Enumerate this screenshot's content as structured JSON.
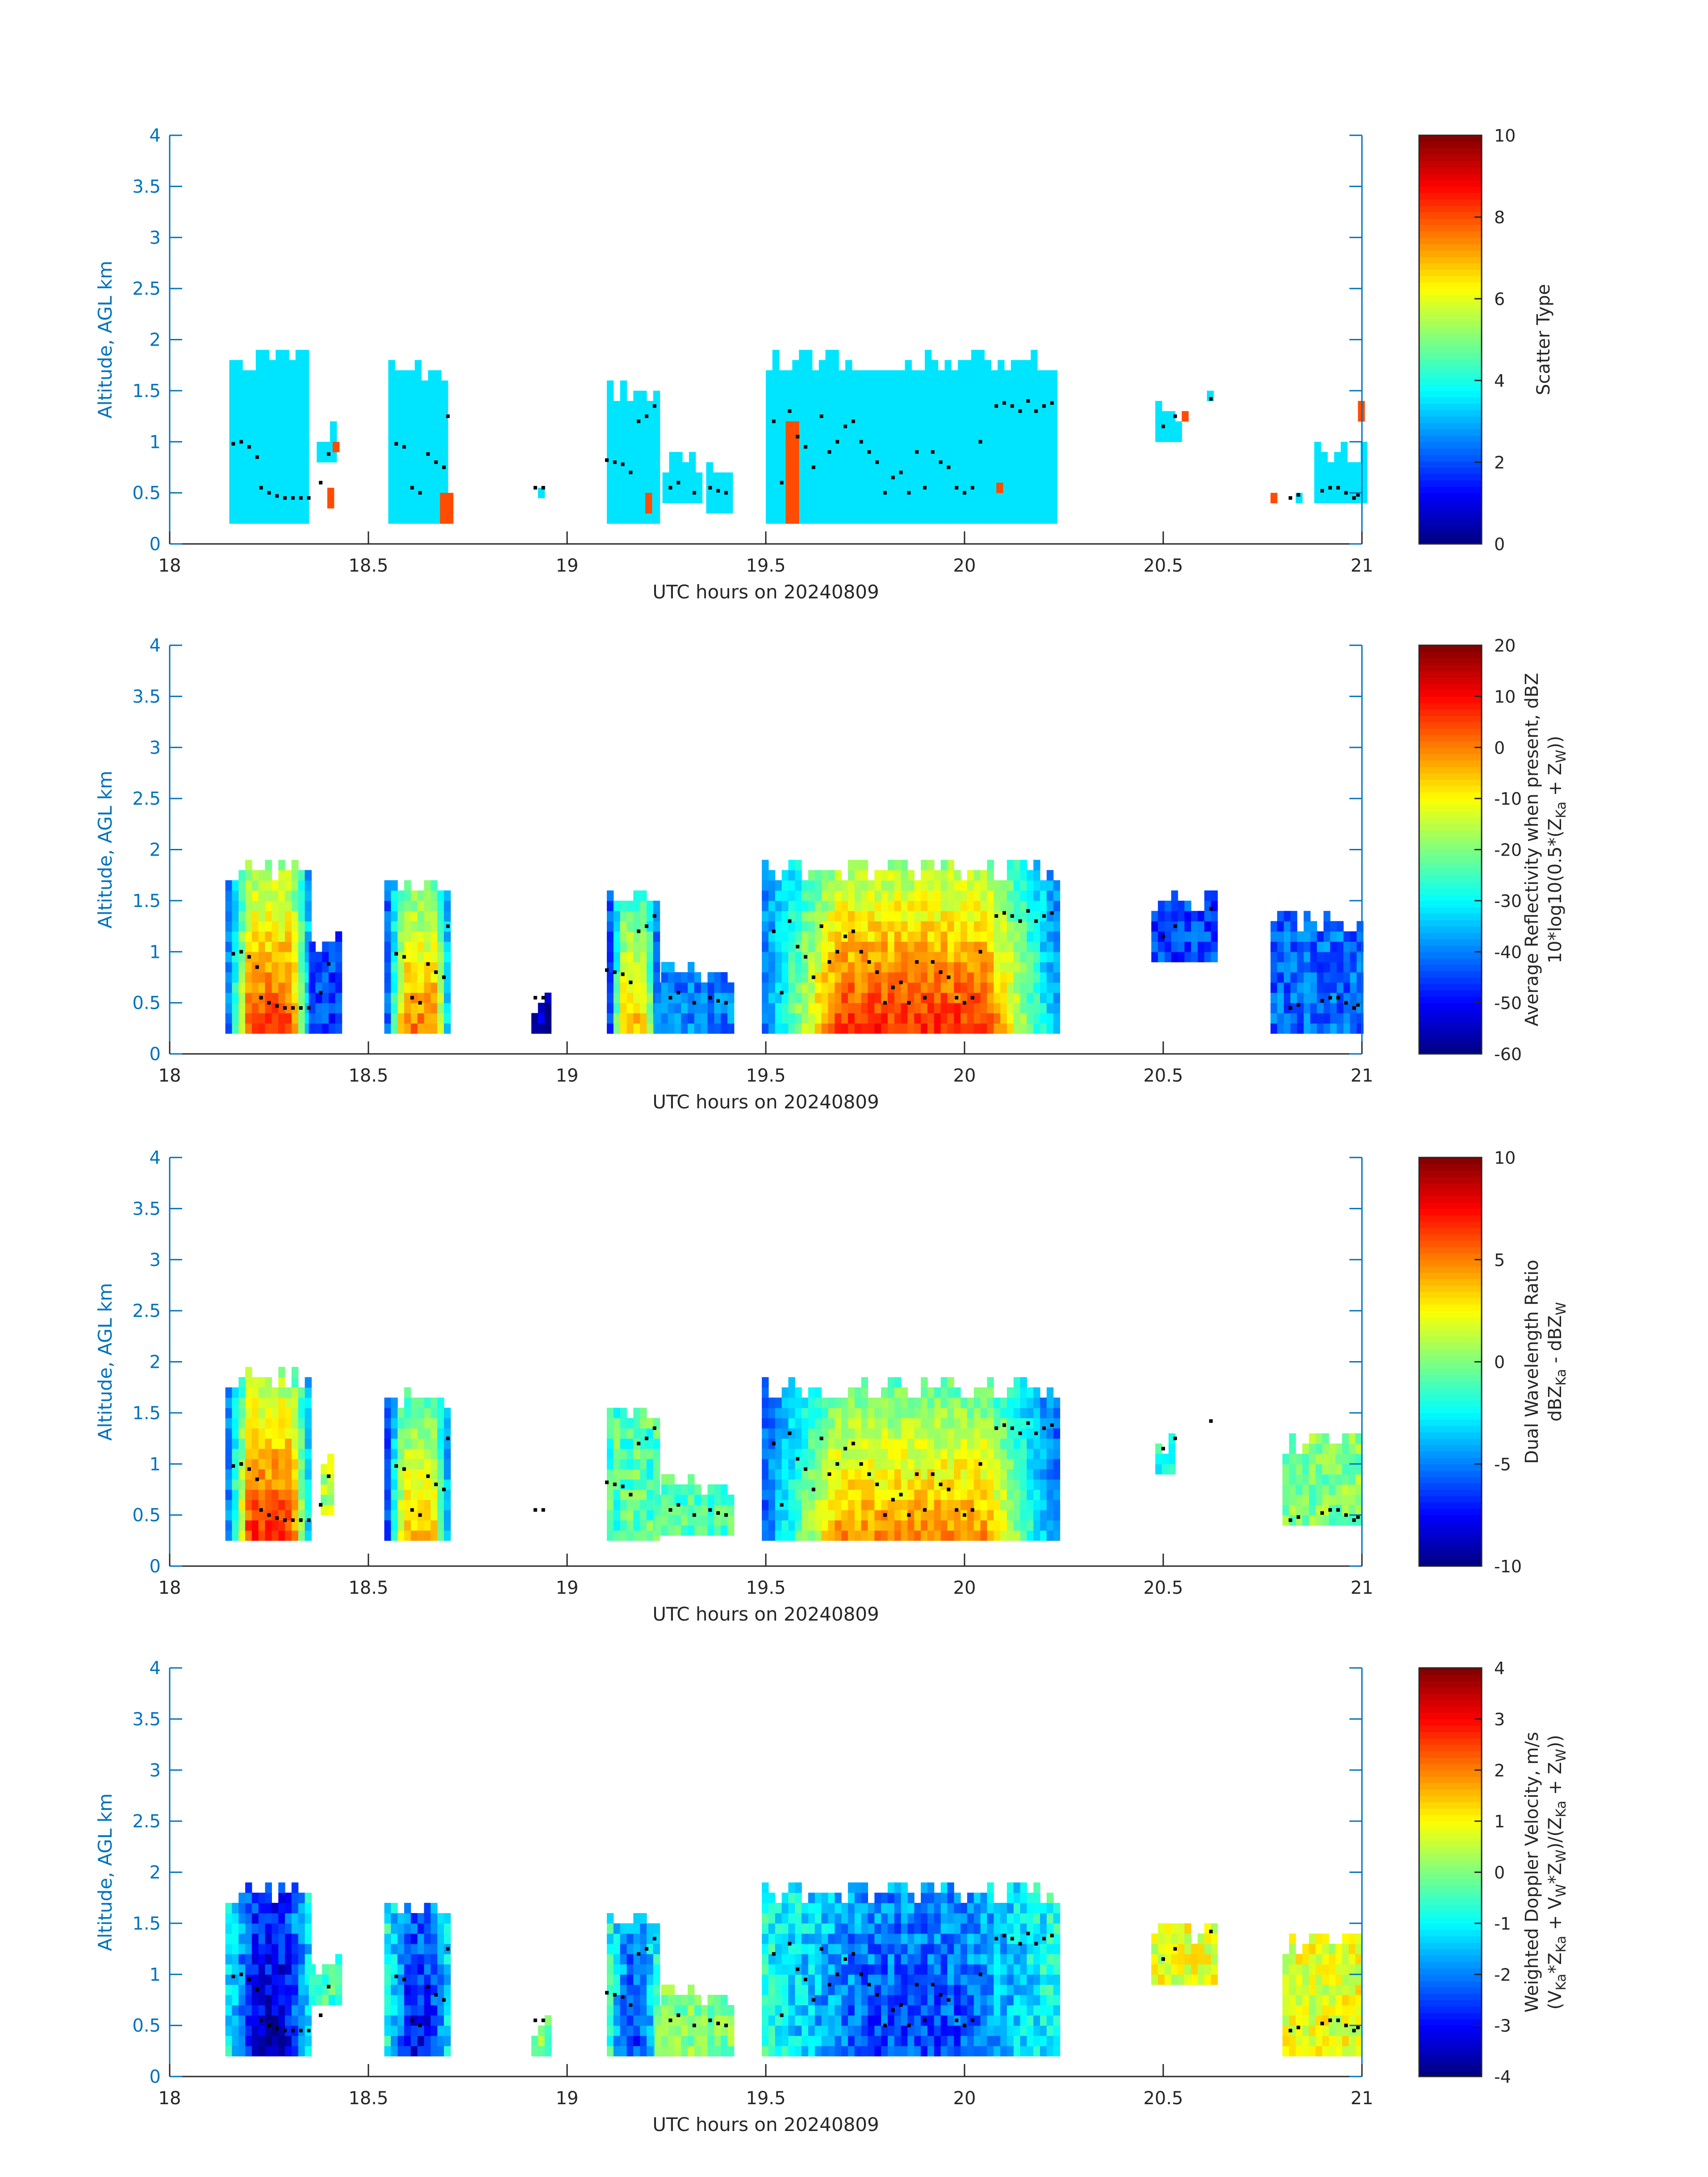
{
  "page": {
    "background": "#ffffff"
  },
  "colors": {
    "axis_blue": "#0072bd",
    "text_dark": "#262626",
    "dot_color": "#000000"
  },
  "chart_data": [
    {
      "type": "heatmap",
      "panel": "scatter-type",
      "xlabel": "UTC hours on 20240809",
      "ylabel": "Altitude, AGL km",
      "xlim": [
        18,
        21
      ],
      "ylim": [
        0,
        4
      ],
      "xticks": [
        "18",
        "18.5",
        "19",
        "19.5",
        "20",
        "20.5",
        "21"
      ],
      "yticks": [
        "0",
        "0.5",
        "1",
        "1.5",
        "2",
        "2.5",
        "3",
        "3.5",
        "4"
      ],
      "colorbar": {
        "label_lines": [
          "Scatter Type"
        ],
        "min": 0,
        "max": 10,
        "ticks": [
          "0",
          "2",
          "4",
          "6",
          "8",
          "10"
        ]
      },
      "cell_dx": 0.0167,
      "cell_dy": 0.1,
      "columns": [
        {
          "x0": 18.14,
          "x1": 18.16,
          "y0": 0.8,
          "y1": 0.95,
          "v": 8
        },
        {
          "x0": 18.15,
          "x1": 18.35,
          "y0": 0.2,
          "y1": 1.9,
          "v": 3.5
        },
        {
          "x0": 18.37,
          "x1": 18.41,
          "y0": 0.8,
          "y1": 1.15,
          "v": 3.5
        },
        {
          "x0": 18.38,
          "x1": 18.4,
          "y0": 0.35,
          "y1": 0.55,
          "v": 8
        },
        {
          "x0": 18.41,
          "x1": 18.43,
          "y0": 0.9,
          "y1": 1.05,
          "v": 8
        },
        {
          "x0": 18.55,
          "x1": 18.7,
          "y0": 0.2,
          "y1": 1.75,
          "v": 3.5
        },
        {
          "x0": 18.68,
          "x1": 18.7,
          "y0": 0.2,
          "y1": 0.55,
          "v": 8
        },
        {
          "x0": 18.91,
          "x1": 18.94,
          "y0": 0.45,
          "y1": 0.6,
          "v": 3.5
        },
        {
          "x0": 19.1,
          "x1": 19.22,
          "y0": 0.2,
          "y1": 1.55,
          "v": 3.5
        },
        {
          "x0": 19.18,
          "x1": 19.21,
          "y0": 0.3,
          "y1": 0.45,
          "v": 8
        },
        {
          "x0": 19.24,
          "x1": 19.34,
          "y0": 0.4,
          "y1": 0.85,
          "v": 3.5
        },
        {
          "x0": 19.35,
          "x1": 19.41,
          "y0": 0.3,
          "y1": 0.85,
          "v": 3.5
        },
        {
          "x0": 19.5,
          "x1": 20.23,
          "y0": 0.2,
          "y1": 1.85,
          "v": 3.5
        },
        {
          "x0": 19.55,
          "x1": 19.57,
          "y0": 0.2,
          "y1": 1.25,
          "v": 8
        },
        {
          "x0": 20.08,
          "x1": 20.1,
          "y0": 0.5,
          "y1": 0.6,
          "v": 8
        },
        {
          "x0": 20.48,
          "x1": 20.54,
          "y0": 1.0,
          "y1": 1.35,
          "v": 3.5
        },
        {
          "x0": 20.53,
          "x1": 20.55,
          "y0": 1.2,
          "y1": 1.3,
          "v": 8
        },
        {
          "x0": 20.61,
          "x1": 20.63,
          "y0": 1.4,
          "y1": 1.5,
          "v": 3.5
        },
        {
          "x0": 20.77,
          "x1": 20.79,
          "y0": 0.4,
          "y1": 0.55,
          "v": 8
        },
        {
          "x0": 20.8,
          "x1": 20.85,
          "y0": 0.4,
          "y1": 0.55,
          "v": 3.5
        },
        {
          "x0": 20.88,
          "x1": 21.0,
          "y0": 0.4,
          "y1": 0.95,
          "v": 3.5
        },
        {
          "x0": 20.99,
          "x1": 21.0,
          "y0": 1.2,
          "y1": 1.35,
          "v": 8
        }
      ]
    },
    {
      "type": "heatmap",
      "panel": "reflectivity",
      "xlabel": "UTC hours on 20240809",
      "ylabel": "Altitude, AGL km",
      "xlim": [
        18,
        21
      ],
      "ylim": [
        0,
        4
      ],
      "xticks": [
        "18",
        "18.5",
        "19",
        "19.5",
        "20",
        "20.5",
        "21"
      ],
      "yticks": [
        "0",
        "0.5",
        "1",
        "1.5",
        "2",
        "2.5",
        "3",
        "3.5",
        "4"
      ],
      "colorbar": {
        "label_lines": [
          "Average Reflectivity when present, dBZ",
          "10*log10(0.5*(Z",
          "Ka",
          " + Z",
          "W",
          "))"
        ],
        "min": -60,
        "max": 20,
        "ticks": [
          "-60",
          "-50",
          "-40",
          "-30",
          "-20",
          "-10",
          "0",
          "10",
          "20"
        ]
      },
      "columns": [
        {
          "x0": 18.14,
          "x1": 18.35,
          "y0": 0.2,
          "y1": 1.9,
          "profile": "core",
          "vmax": 10
        },
        {
          "x0": 18.35,
          "x1": 18.43,
          "y0": 0.2,
          "y1": 1.15,
          "profile": "weak",
          "vmax": -45
        },
        {
          "x0": 18.54,
          "x1": 18.7,
          "y0": 0.2,
          "y1": 1.75,
          "profile": "core",
          "vmax": 5
        },
        {
          "x0": 18.91,
          "x1": 18.95,
          "y0": 0.2,
          "y1": 0.6,
          "profile": "weak",
          "vmax": -55
        },
        {
          "x0": 19.1,
          "x1": 19.22,
          "y0": 0.2,
          "y1": 1.6,
          "profile": "core",
          "vmax": 0
        },
        {
          "x0": 19.22,
          "x1": 19.42,
          "y0": 0.2,
          "y1": 0.85,
          "profile": "weak",
          "vmax": -40
        },
        {
          "x0": 19.49,
          "x1": 20.23,
          "y0": 0.2,
          "y1": 1.9,
          "profile": "core",
          "vmax": 12
        },
        {
          "x0": 20.47,
          "x1": 20.63,
          "y0": 0.9,
          "y1": 1.55,
          "profile": "weak",
          "vmax": -45
        },
        {
          "x0": 20.77,
          "x1": 21.0,
          "y0": 0.2,
          "y1": 1.4,
          "profile": "weak",
          "vmax": -42
        }
      ]
    },
    {
      "type": "heatmap",
      "panel": "dual-wavelength-ratio",
      "xlabel": "UTC hours on 20240809",
      "ylabel": "Altitude, AGL km",
      "xlim": [
        18,
        21
      ],
      "ylim": [
        0,
        4
      ],
      "xticks": [
        "18",
        "18.5",
        "19",
        "19.5",
        "20",
        "20.5",
        "21"
      ],
      "yticks": [
        "0",
        "0.5",
        "1",
        "1.5",
        "2",
        "2.5",
        "3",
        "3.5",
        "4"
      ],
      "colorbar": {
        "label_lines": [
          "Dual Wavelength Ratio",
          "dBZ",
          "Ka",
          " - dBZ",
          "W"
        ],
        "min": -10,
        "max": 10,
        "ticks": [
          "-10",
          "-5",
          "0",
          "5",
          "10"
        ]
      },
      "columns": [
        {
          "x0": 18.14,
          "x1": 18.35,
          "y0": 0.25,
          "y1": 1.9,
          "profile": "core",
          "vmax": 8
        },
        {
          "x0": 18.38,
          "x1": 18.41,
          "y0": 0.5,
          "y1": 1.15,
          "profile": "weak",
          "vmax": 1
        },
        {
          "x0": 18.54,
          "x1": 18.7,
          "y0": 0.25,
          "y1": 1.75,
          "profile": "core",
          "vmax": 5
        },
        {
          "x0": 18.91,
          "x1": 18.94,
          "y0": 0.5,
          "y1": 0.6,
          "profile": "weak",
          "vmax": 0
        },
        {
          "x0": 19.1,
          "x1": 19.22,
          "y0": 0.25,
          "y1": 1.6,
          "profile": "mid",
          "vmax": 2
        },
        {
          "x0": 19.22,
          "x1": 19.42,
          "y0": 0.3,
          "y1": 0.85,
          "profile": "weak",
          "vmax": -1
        },
        {
          "x0": 19.49,
          "x1": 20.23,
          "y0": 0.25,
          "y1": 1.8,
          "profile": "core",
          "vmax": 6
        },
        {
          "x0": 20.48,
          "x1": 20.52,
          "y0": 0.9,
          "y1": 1.25,
          "profile": "weak",
          "vmax": -2
        },
        {
          "x0": 20.8,
          "x1": 21.0,
          "y0": 0.4,
          "y1": 1.3,
          "profile": "weak",
          "vmax": 0
        }
      ]
    },
    {
      "type": "heatmap",
      "panel": "doppler-velocity",
      "xlabel": "UTC hours on 20240809",
      "ylabel": "Altitude, AGL km",
      "xlim": [
        18,
        21
      ],
      "ylim": [
        0,
        4
      ],
      "xticks": [
        "18",
        "18.5",
        "19",
        "19.5",
        "20",
        "20.5",
        "21"
      ],
      "yticks": [
        "0",
        "0.5",
        "1",
        "1.5",
        "2",
        "2.5",
        "3",
        "3.5",
        "4"
      ],
      "colorbar": {
        "label_lines": [
          "Weighted Doppler Velocity, m/s",
          "(V",
          "Ka",
          "*Z",
          "Ka",
          " + V",
          "W",
          "*Z",
          "W",
          ")/(Z",
          "Ka",
          " + Z",
          "W",
          "))"
        ],
        "min": -4,
        "max": 4,
        "ticks": [
          "-4",
          "-3",
          "-2",
          "-1",
          "0",
          "1",
          "2",
          "3",
          "4"
        ]
      },
      "columns": [
        {
          "x0": 18.14,
          "x1": 18.35,
          "y0": 0.2,
          "y1": 1.9,
          "profile": "down",
          "vmax": -3.5
        },
        {
          "x0": 18.35,
          "x1": 18.43,
          "y0": 0.7,
          "y1": 1.15,
          "profile": "weak",
          "vmax": -0.5
        },
        {
          "x0": 18.54,
          "x1": 18.7,
          "y0": 0.2,
          "y1": 1.75,
          "profile": "down",
          "vmax": -3
        },
        {
          "x0": 18.91,
          "x1": 18.95,
          "y0": 0.2,
          "y1": 0.6,
          "profile": "weak",
          "vmax": 0
        },
        {
          "x0": 19.1,
          "x1": 19.22,
          "y0": 0.2,
          "y1": 1.6,
          "profile": "down",
          "vmax": -2.5
        },
        {
          "x0": 19.22,
          "x1": 19.42,
          "y0": 0.2,
          "y1": 0.85,
          "profile": "weak",
          "vmax": 0
        },
        {
          "x0": 19.49,
          "x1": 20.23,
          "y0": 0.2,
          "y1": 1.9,
          "profile": "down",
          "vmax": -2.5
        },
        {
          "x0": 20.47,
          "x1": 20.63,
          "y0": 0.9,
          "y1": 1.5,
          "profile": "weak",
          "vmax": 0.8
        },
        {
          "x0": 20.8,
          "x1": 21.0,
          "y0": 0.2,
          "y1": 1.4,
          "profile": "weak",
          "vmax": 0.8
        }
      ]
    }
  ],
  "cloud_base_dots": [
    [
      18.16,
      0.98
    ],
    [
      18.18,
      1.0
    ],
    [
      18.2,
      0.95
    ],
    [
      18.22,
      0.85
    ],
    [
      18.23,
      0.55
    ],
    [
      18.25,
      0.5
    ],
    [
      18.27,
      0.47
    ],
    [
      18.29,
      0.45
    ],
    [
      18.31,
      0.45
    ],
    [
      18.33,
      0.45
    ],
    [
      18.35,
      0.45
    ],
    [
      18.38,
      0.6
    ],
    [
      18.4,
      0.88
    ],
    [
      18.57,
      0.98
    ],
    [
      18.59,
      0.95
    ],
    [
      18.61,
      0.55
    ],
    [
      18.63,
      0.5
    ],
    [
      18.65,
      0.88
    ],
    [
      18.67,
      0.8
    ],
    [
      18.69,
      0.75
    ],
    [
      18.7,
      1.25
    ],
    [
      18.92,
      0.55
    ],
    [
      18.94,
      0.55
    ],
    [
      19.1,
      0.82
    ],
    [
      19.12,
      0.8
    ],
    [
      19.14,
      0.78
    ],
    [
      19.16,
      0.7
    ],
    [
      19.18,
      1.2
    ],
    [
      19.2,
      1.25
    ],
    [
      19.22,
      1.35
    ],
    [
      19.26,
      0.55
    ],
    [
      19.28,
      0.6
    ],
    [
      19.32,
      0.5
    ],
    [
      19.36,
      0.55
    ],
    [
      19.38,
      0.52
    ],
    [
      19.4,
      0.5
    ],
    [
      19.52,
      1.2
    ],
    [
      19.54,
      0.6
    ],
    [
      19.56,
      1.3
    ],
    [
      19.58,
      1.05
    ],
    [
      19.6,
      0.95
    ],
    [
      19.62,
      0.75
    ],
    [
      19.64,
      1.25
    ],
    [
      19.66,
      0.9
    ],
    [
      19.68,
      1.0
    ],
    [
      19.7,
      1.15
    ],
    [
      19.72,
      1.2
    ],
    [
      19.74,
      1.0
    ],
    [
      19.76,
      0.9
    ],
    [
      19.78,
      0.8
    ],
    [
      19.8,
      0.5
    ],
    [
      19.82,
      0.65
    ],
    [
      19.84,
      0.7
    ],
    [
      19.86,
      0.5
    ],
    [
      19.88,
      0.9
    ],
    [
      19.9,
      0.55
    ],
    [
      19.92,
      0.9
    ],
    [
      19.94,
      0.8
    ],
    [
      19.96,
      0.75
    ],
    [
      19.98,
      0.55
    ],
    [
      20.0,
      0.5
    ],
    [
      20.02,
      0.55
    ],
    [
      20.04,
      1.0
    ],
    [
      20.08,
      1.35
    ],
    [
      20.1,
      1.38
    ],
    [
      20.12,
      1.35
    ],
    [
      20.14,
      1.3
    ],
    [
      20.16,
      1.4
    ],
    [
      20.18,
      1.3
    ],
    [
      20.2,
      1.35
    ],
    [
      20.22,
      1.38
    ],
    [
      20.5,
      1.15
    ],
    [
      20.53,
      1.25
    ],
    [
      20.62,
      1.42
    ],
    [
      20.82,
      0.45
    ],
    [
      20.84,
      0.48
    ],
    [
      20.9,
      0.52
    ],
    [
      20.92,
      0.55
    ],
    [
      20.94,
      0.55
    ],
    [
      20.96,
      0.5
    ],
    [
      20.98,
      0.45
    ],
    [
      20.99,
      0.48
    ]
  ]
}
